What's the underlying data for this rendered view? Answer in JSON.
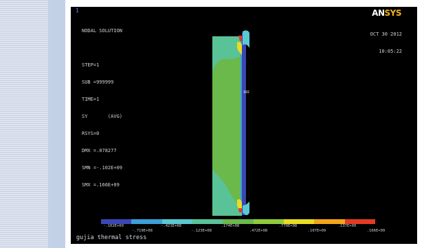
{
  "window_number": "1",
  "info_lines": [
    "NODAL SOLUTION",
    "",
    "STEP=1",
    "SUB =999999",
    "TIME=1",
    "SY       (AVG)",
    "RSYS=0",
    "DMX =.078277",
    "SMN =-.102E+09",
    "SMX =.166E+09"
  ],
  "logo": {
    "part1": "AN",
    "part2": "SYS"
  },
  "date": "OCT 30 2012",
  "time": "10:05:22",
  "node_label": "102",
  "colorbar": {
    "colors": [
      "#3a46b6",
      "#3d9ed8",
      "#5ac8d0",
      "#59c296",
      "#6ab94a",
      "#8fcc3a",
      "#e8dd22",
      "#f3a51a",
      "#e33b22"
    ],
    "labels_top": [
      "-.102E+09",
      "-.421E+08",
      ".174E+08",
      ".770E+08",
      ".137E+09"
    ],
    "labels_bottom": [
      "-.719E+08",
      "-.123E+08",
      ".472E+08",
      ".107E+09",
      ".166E+09"
    ]
  },
  "caption": "gujia thermal stress",
  "colors": {
    "background": "#000000",
    "body_main": "#6ab94a",
    "body_light": "#59c296",
    "strip": "#3a46b6"
  }
}
